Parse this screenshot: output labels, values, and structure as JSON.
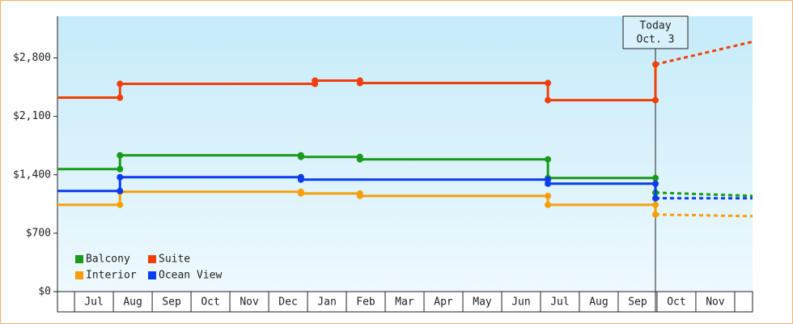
{
  "chart_data": {
    "type": "step-line",
    "xlim": [
      -0.44,
      17.46
    ],
    "xticks": [
      {
        "value": 0.5,
        "label": "Jul"
      },
      {
        "value": 1.5,
        "label": "Aug"
      },
      {
        "value": 2.5,
        "label": "Sep"
      },
      {
        "value": 3.5,
        "label": "Oct"
      },
      {
        "value": 4.5,
        "label": "Nov"
      },
      {
        "value": 5.5,
        "label": "Dec"
      },
      {
        "value": 6.5,
        "label": "Jan"
      },
      {
        "value": 7.5,
        "label": "Feb"
      },
      {
        "value": 8.5,
        "label": "Mar"
      },
      {
        "value": 9.5,
        "label": "Apr"
      },
      {
        "value": 10.5,
        "label": "May"
      },
      {
        "value": 11.5,
        "label": "Jun"
      },
      {
        "value": 12.5,
        "label": "Jul"
      },
      {
        "value": 13.5,
        "label": "Aug"
      },
      {
        "value": 14.5,
        "label": "Sep"
      },
      {
        "value": 15.5,
        "label": "Oct"
      },
      {
        "value": 16.5,
        "label": "Nov"
      }
    ],
    "ylim": [
      0,
      3300
    ],
    "yticks": [
      {
        "value": 0,
        "label": "$0"
      },
      {
        "value": 700,
        "label": "$700"
      },
      {
        "value": 1400,
        "label": "$1,400"
      },
      {
        "value": 2100,
        "label": "$2,100"
      },
      {
        "value": 2800,
        "label": "$2,800"
      }
    ],
    "today": {
      "x": 14.96,
      "label": [
        "Today",
        "Oct. 3"
      ]
    },
    "series": [
      {
        "name": "Balcony",
        "color": "#1a9a1a",
        "x": [
          -0.44,
          1.17,
          5.83,
          7.35,
          12.19,
          14.96
        ],
        "values": [
          1468,
          1633,
          1614,
          1585,
          1361,
          1186
        ],
        "forecast": {
          "x": [
            14.96,
            17.46
          ],
          "values": [
            1186,
            1147
          ]
        }
      },
      {
        "name": "Suite",
        "color": "#f0400a",
        "x": [
          -0.44,
          1.17,
          6.19,
          7.35,
          12.19,
          14.96
        ],
        "values": [
          2324,
          2489,
          2528,
          2499,
          2294,
          2722
        ],
        "forecast": {
          "x": [
            14.96,
            17.46
          ],
          "values": [
            2722,
            2994
          ]
        }
      },
      {
        "name": "Interior",
        "color": "#f5a00a",
        "x": [
          -0.44,
          1.17,
          5.83,
          7.35,
          12.19,
          14.96
        ],
        "values": [
          1040,
          1196,
          1176,
          1147,
          1040,
          924
        ],
        "forecast": {
          "x": [
            14.96,
            17.46
          ],
          "values": [
            924,
            904
          ]
        }
      },
      {
        "name": "Ocean View",
        "color": "#0a3cf0",
        "x": [
          -0.44,
          1.17,
          5.83,
          12.19,
          14.96
        ],
        "values": [
          1206,
          1371,
          1342,
          1293,
          1118
        ],
        "forecast": {
          "x": [
            14.96,
            17.46
          ],
          "values": [
            1118,
            1118
          ]
        }
      }
    ]
  }
}
